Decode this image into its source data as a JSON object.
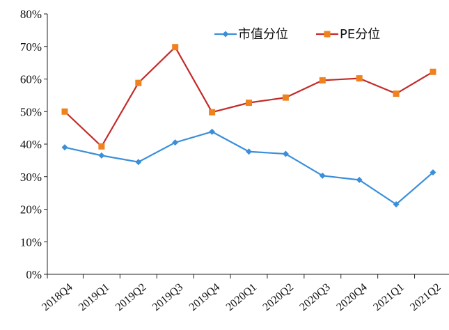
{
  "chart_data": {
    "type": "line",
    "categories": [
      "2018Q4",
      "2019Q1",
      "2019Q2",
      "2019Q3",
      "2019Q4",
      "2020Q1",
      "2020Q2",
      "2020Q3",
      "2020Q4",
      "2021Q1",
      "2021Q2"
    ],
    "ylim": [
      0,
      80
    ],
    "yticks": [
      "0%",
      "10%",
      "20%",
      "30%",
      "40%",
      "50%",
      "60%",
      "70%",
      "80%"
    ],
    "grid": false,
    "legend_position": "top-right",
    "series": [
      {
        "name": "市值分位",
        "color": "#3b8fd9",
        "marker": "diamond",
        "values": [
          39,
          36.5,
          34.5,
          40.5,
          43.8,
          37.7,
          37,
          30.3,
          29,
          21.5,
          31.3
        ]
      },
      {
        "name": "PE分位",
        "color": "#c42a2a",
        "marker_color": "#f0821e",
        "marker": "square",
        "values": [
          50,
          39.3,
          58.8,
          69.8,
          49.8,
          52.7,
          54.3,
          59.6,
          60.2,
          55.5,
          62.2
        ]
      }
    ]
  }
}
